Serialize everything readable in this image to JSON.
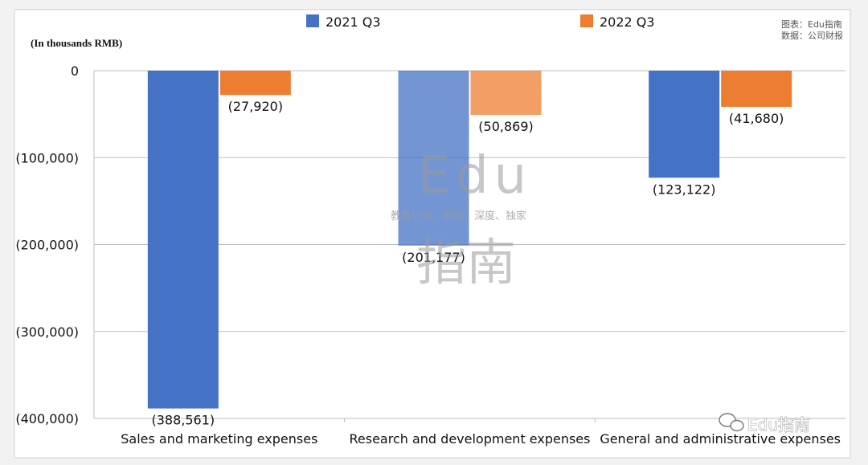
{
  "chart_data": {
    "type": "bar",
    "unit_label": "(In thousands RMB)",
    "categories": [
      "Sales and marketing expenses",
      "Research and development expenses",
      "General and administrative expenses"
    ],
    "series": [
      {
        "name": "2021 Q3",
        "color": "#4472c4",
        "values": [
          -388561,
          -201177,
          -123122
        ],
        "data_labels": [
          "(388,561)",
          "(201,177)",
          "(123,122)"
        ]
      },
      {
        "name": "2022 Q3",
        "color": "#ed7d31",
        "values": [
          -27920,
          -50869,
          -41680
        ],
        "data_labels": [
          "(27,920)",
          "(50,869)",
          "(41,680)"
        ]
      }
    ],
    "highlighted_category_index": 1,
    "ylim": [
      -400000,
      0
    ],
    "yticks": [
      0,
      -100000,
      -200000,
      -300000,
      -400000
    ],
    "ytick_labels": [
      "0",
      "(100,000)",
      "(200,000)",
      "(300,000)",
      "(400,000)"
    ],
    "grid": true,
    "legend_position": "top"
  },
  "source_note": {
    "line1": "图表：Edu指南",
    "line2": "数据：公司财报"
  },
  "watermark": {
    "title": "Edu",
    "tagline": "教育行业，前沿、深度、独家",
    "cn": "指南"
  },
  "brand_mark": {
    "text": "Edu指南",
    "icon": "wechat-icon"
  }
}
